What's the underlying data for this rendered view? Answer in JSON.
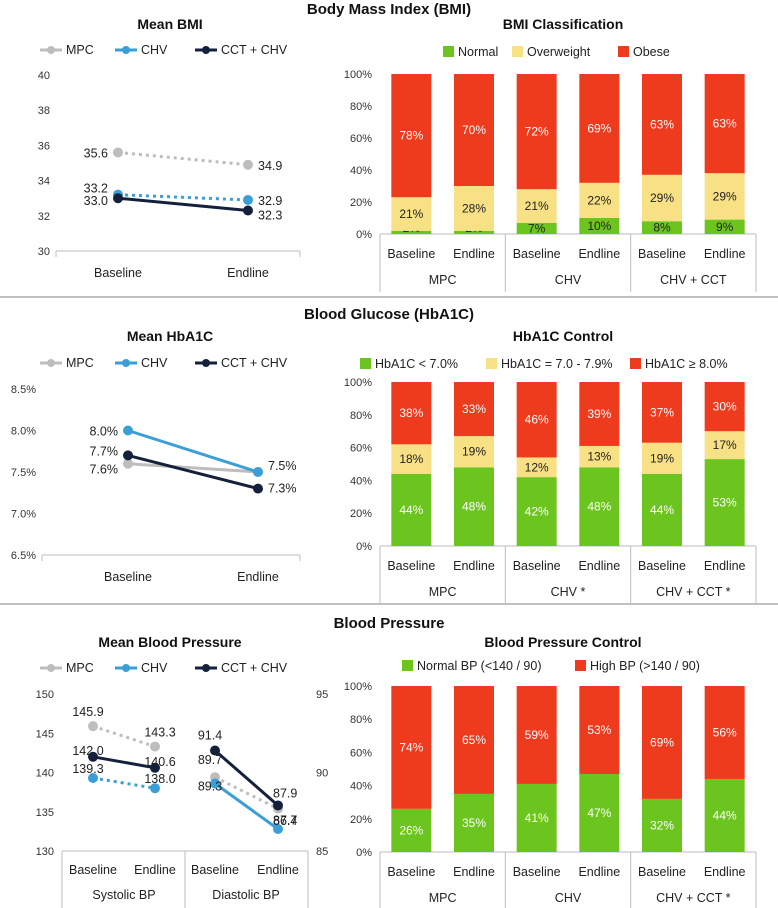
{
  "colors": {
    "mpc": "#bdbdbd",
    "chv": "#3a9fd6",
    "cct_chv": "#14213d",
    "normal": "#6cc51e",
    "overweight": "#f8e084",
    "obese": "#ee3a1d",
    "axis": "#bdbdbd",
    "sep": "#9a9a9a"
  },
  "sections": {
    "bmi": "Body Mass Index (BMI)",
    "glucose": "Blood Glucose (HbA1C)",
    "bp": "Blood Pressure"
  },
  "chart_data": [
    {
      "id": "mean_bmi",
      "type": "line",
      "title": "Mean BMI",
      "categories": [
        "Baseline",
        "Endline"
      ],
      "yticks": [
        "40",
        "38",
        "36",
        "34",
        "32",
        "30"
      ],
      "ylim": [
        30,
        40
      ],
      "legend": [
        "MPC",
        "CHV",
        "CCT + CHV"
      ],
      "series": [
        {
          "name": "MPC",
          "values": [
            35.6,
            34.9
          ],
          "labels": [
            "35.6",
            "34.9"
          ],
          "dashed": true
        },
        {
          "name": "CHV",
          "values": [
            33.2,
            32.9
          ],
          "labels": [
            "33.2",
            "32.9"
          ],
          "dashed": true
        },
        {
          "name": "CCT + CHV",
          "values": [
            33.0,
            32.3
          ],
          "labels": [
            "33.0",
            "32.3"
          ],
          "dashed": false
        }
      ]
    },
    {
      "id": "bmi_class",
      "type": "bar",
      "stacked": true,
      "title": "BMI Classification",
      "legend": [
        "Normal",
        "Overweight",
        "Obese"
      ],
      "groups": [
        "MPC",
        "CHV",
        "CHV + CCT"
      ],
      "categories": [
        "Baseline",
        "Endline",
        "Baseline",
        "Endline",
        "Baseline",
        "Endline"
      ],
      "yticks": [
        "100%",
        "80%",
        "60%",
        "40%",
        "20%",
        "0%"
      ],
      "series": [
        {
          "name": "Normal",
          "values": [
            2,
            2,
            7,
            10,
            8,
            9
          ],
          "labels": [
            "2%",
            "2%",
            "7%",
            "10%",
            "8%",
            "9%"
          ]
        },
        {
          "name": "Overweight",
          "values": [
            21,
            28,
            21,
            22,
            29,
            29
          ],
          "labels": [
            "21%",
            "28%",
            "21%",
            "22%",
            "29%",
            "29%"
          ]
        },
        {
          "name": "Obese",
          "values": [
            78,
            70,
            72,
            69,
            63,
            63
          ],
          "labels": [
            "78%",
            "70%",
            "72%",
            "69%",
            "63%",
            "63%"
          ]
        }
      ]
    },
    {
      "id": "mean_hba1c",
      "type": "line",
      "title": "Mean HbA1C",
      "categories": [
        "Baseline",
        "Endline"
      ],
      "yticks": [
        "8.5%",
        "8.0%",
        "7.5%",
        "7.0%",
        "6.5%"
      ],
      "ylim": [
        6.5,
        8.5
      ],
      "legend": [
        "MPC",
        "CHV",
        "CCT + CHV"
      ],
      "series": [
        {
          "name": "MPC",
          "values": [
            7.6,
            7.5
          ],
          "labels": [
            "7.6%",
            ""
          ],
          "dashed": false
        },
        {
          "name": "CHV",
          "values": [
            8.0,
            7.5
          ],
          "labels": [
            "8.0%",
            "7.5%"
          ],
          "dashed": false
        },
        {
          "name": "CCT + CHV",
          "values": [
            7.7,
            7.3
          ],
          "labels": [
            "7.7%",
            "7.3%"
          ],
          "dashed": false
        }
      ]
    },
    {
      "id": "hba1c_control",
      "type": "bar",
      "stacked": true,
      "title": "HbA1C Control",
      "legend": [
        "HbA1C < 7.0%",
        "HbA1C = 7.0 - 7.9%",
        "HbA1C ≥ 8.0%"
      ],
      "groups": [
        "MPC",
        "CHV *",
        "CHV + CCT *"
      ],
      "categories": [
        "Baseline",
        "Endline",
        "Baseline",
        "Endline",
        "Baseline",
        "Endline"
      ],
      "yticks": [
        "100%",
        "80%",
        "60%",
        "40%",
        "20%",
        "0%"
      ],
      "series": [
        {
          "name": "HbA1C < 7.0%",
          "values": [
            44,
            48,
            42,
            48,
            44,
            53
          ],
          "labels": [
            "44%",
            "48%",
            "42%",
            "48%",
            "44%",
            "53%"
          ]
        },
        {
          "name": "HbA1C = 7.0 - 7.9%",
          "values": [
            18,
            19,
            12,
            13,
            19,
            17
          ],
          "labels": [
            "18%",
            "19%",
            "12%",
            "13%",
            "19%",
            "17%"
          ]
        },
        {
          "name": "HbA1C ≥ 8.0%",
          "values": [
            38,
            33,
            46,
            39,
            37,
            30
          ],
          "labels": [
            "38%",
            "33%",
            "46%",
            "39%",
            "37%",
            "30%"
          ]
        }
      ]
    },
    {
      "id": "mean_bp",
      "type": "line",
      "title": "Mean Blood Pressure",
      "groups": [
        "Systolic BP",
        "Diastolic BP"
      ],
      "categories": [
        "Baseline",
        "Endline",
        "Baseline",
        "Endline"
      ],
      "yticks_left": [
        "150",
        "145",
        "140",
        "135",
        "130"
      ],
      "ylim_left": [
        130,
        150
      ],
      "yticks_right": [
        "95",
        "90",
        "85"
      ],
      "ylim_right": [
        85,
        95
      ],
      "legend": [
        "MPC",
        "CHV",
        "CCT + CHV"
      ],
      "series": [
        {
          "name": "MPC",
          "systolic": [
            145.9,
            143.3
          ],
          "diastolic": [
            89.7,
            87.7
          ],
          "labels": [
            "145.9",
            "143.3",
            "89.7",
            "87.7"
          ],
          "dashed": true
        },
        {
          "name": "CHV",
          "systolic": [
            139.3,
            138.0
          ],
          "diastolic": [
            89.3,
            86.4
          ],
          "labels": [
            "139.3",
            "138.0",
            "89.3",
            "86.4"
          ],
          "dashed": true
        },
        {
          "name": "CCT + CHV",
          "systolic": [
            142.0,
            140.6
          ],
          "diastolic": [
            91.4,
            87.9
          ],
          "labels": [
            "142.0",
            "140.6",
            "91.4",
            "87.9"
          ],
          "dashed": false
        }
      ]
    },
    {
      "id": "bp_control",
      "type": "bar",
      "stacked": true,
      "title": "Blood Pressure Control",
      "legend": [
        "Normal BP (<140 / 90)",
        "High BP (>140 / 90)"
      ],
      "groups": [
        "MPC",
        "CHV",
        "CHV + CCT *"
      ],
      "categories": [
        "Baseline",
        "Endline",
        "Baseline",
        "Endline",
        "Baseline",
        "Endline"
      ],
      "yticks": [
        "100%",
        "80%",
        "60%",
        "40%",
        "20%",
        "0%"
      ],
      "series": [
        {
          "name": "Normal BP (<140 / 90)",
          "values": [
            26,
            35,
            41,
            47,
            32,
            44
          ],
          "labels": [
            "26%",
            "35%",
            "41%",
            "47%",
            "32%",
            "44%"
          ]
        },
        {
          "name": "High BP (>140 / 90)",
          "values": [
            74,
            65,
            59,
            53,
            69,
            56
          ],
          "labels": [
            "74%",
            "65%",
            "59%",
            "53%",
            "69%",
            "56%"
          ]
        }
      ]
    }
  ]
}
